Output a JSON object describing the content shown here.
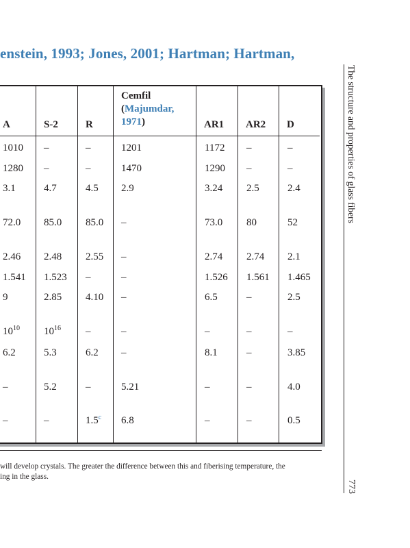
{
  "reference_line": {
    "before": "enstein, 1993; Jones, 2001; Hartman; Hartman,"
  },
  "table": {
    "headers": {
      "A": "A",
      "S2": "S-2",
      "R": "R",
      "cemfil_name": "Cemfil",
      "cemfil_cite_open": "(",
      "cemfil_cite_author": "Majumdar,",
      "cemfil_cite_year": "1971",
      "cemfil_cite_close": ")",
      "AR1": "AR1",
      "AR2": "AR2",
      "D": "D"
    },
    "rows": [
      {
        "A": "1010",
        "S2": "–",
        "R": "–",
        "Cemfil": "1201",
        "AR1": "1172",
        "AR2": "–",
        "D": "–"
      },
      {
        "A": "1280",
        "S2": "–",
        "R": "–",
        "Cemfil": "1470",
        "AR1": "1290",
        "AR2": "–",
        "D": "–"
      },
      {
        "A": "3.1",
        "S2": "4.7",
        "R": "4.5",
        "Cemfil": "2.9",
        "AR1": "3.24",
        "AR2": "2.5",
        "D": "2.4"
      },
      {
        "A": "72.0",
        "S2": "85.0",
        "R": "85.0",
        "Cemfil": "–",
        "AR1": "73.0",
        "AR2": "80",
        "D": "52"
      },
      {
        "A": "2.46",
        "S2": "2.48",
        "R": "2.55",
        "Cemfil": "–",
        "AR1": "2.74",
        "AR2": "2.74",
        "D": "2.1"
      },
      {
        "A": "1.541",
        "S2": "1.523",
        "R": "–",
        "Cemfil": "–",
        "AR1": "1.526",
        "AR2": "1.561",
        "D": "1.465"
      },
      {
        "A": "9",
        "S2": "2.85",
        "R": "4.10",
        "Cemfil": "–",
        "AR1": "6.5",
        "AR2": "–",
        "D": "2.5"
      },
      {
        "A_base": "10",
        "A_exp": "10",
        "S2_base": "10",
        "S2_exp": "16",
        "R": "–",
        "Cemfil": "–",
        "AR1": "–",
        "AR2": "–",
        "D": "–"
      },
      {
        "A": "6.2",
        "S2": "5.3",
        "R": "6.2",
        "Cemfil": "–",
        "AR1": "8.1",
        "AR2": "–",
        "D": "3.85"
      },
      {
        "A": "–",
        "S2": "5.2",
        "R": "–",
        "Cemfil": "5.21",
        "AR1": "–",
        "AR2": "–",
        "D": "4.0"
      },
      {
        "A": "–",
        "S2": "–",
        "R": "1.5",
        "R_note": "c",
        "Cemfil": "6.8",
        "AR1": "–",
        "AR2": "–",
        "D": "0.5"
      }
    ]
  },
  "footnote": {
    "line1": "will develop crystals. The greater the difference between this and fiberising temperature, the",
    "line2": "ing in the glass."
  },
  "running_head": {
    "title": "The structure and properties of glass fibers",
    "page_number": "773"
  }
}
